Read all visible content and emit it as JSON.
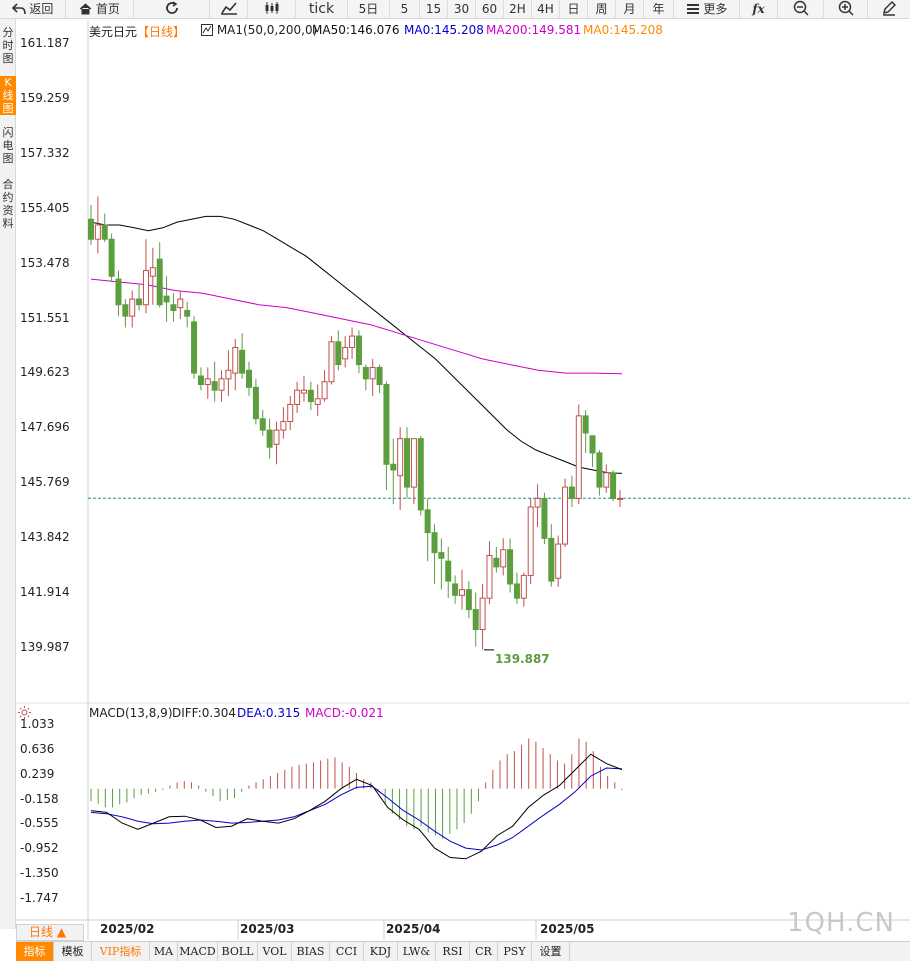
{
  "toolbar": {
    "back": "返回",
    "home": "首页",
    "tick": "tick",
    "five_day": "5日",
    "periods": [
      "5",
      "15",
      "30",
      "60",
      "2H",
      "4H",
      "日",
      "周",
      "月",
      "年"
    ],
    "more": "更多",
    "fx": "fx"
  },
  "sidetabs": [
    "分时图",
    "K线图",
    "闪电图",
    "合约资料"
  ],
  "header": {
    "symbol": "美元日元",
    "period": "【日线】",
    "ma_group": "MA1(50,0,200,0)",
    "ma50": "MA50:146.076",
    "ma0a": "MA0:145.208",
    "ma200": "MA200:149.581",
    "ma0b": "MA0:145.208"
  },
  "macd_header": {
    "name": "MACD(13,8,9)",
    "diff": "DIFF:0.304",
    "dea": "DEA:0.315",
    "macd": "MACD:-0.021"
  },
  "low_label": "139.887",
  "bottom": {
    "period_button": "日线 ▲",
    "tabs": [
      "指标",
      "模板",
      "VIP指标",
      "MA",
      "MACD",
      "BOLL",
      "VOL",
      "BIAS",
      "CCI",
      "KDJ",
      "LW&",
      "RSI",
      "CR",
      "PSY",
      "设置"
    ]
  },
  "watermark": "1QH.CN",
  "colors": {
    "up": "#c0504d",
    "down": "#5a9e3e",
    "ma50": "#000000",
    "ma200": "#cc00cc",
    "price_line": "#2b8a8a",
    "dea": "#0000cc",
    "accent": "#ff8a00"
  },
  "chart_data": [
    {
      "type": "candlestick",
      "y_ticks": [
        "161.187",
        "159.259",
        "157.332",
        "155.405",
        "153.478",
        "151.551",
        "149.623",
        "147.696",
        "145.769",
        "143.842",
        "141.914",
        "139.987"
      ],
      "ylim": [
        139.987,
        161.187
      ],
      "x_ticks": [
        "2025/02",
        "2025/03",
        "2025/04",
        "2025/05"
      ],
      "current_price": 145.208,
      "low_marker": 139.887,
      "candles": [
        [
          "155.0",
          "155.5",
          "154.1",
          "154.3"
        ],
        [
          "154.3",
          "155.8",
          "153.8",
          "154.8"
        ],
        [
          "154.8",
          "155.2",
          "154.2",
          "154.3"
        ],
        [
          "154.3",
          "154.5",
          "152.8",
          "153.0"
        ],
        [
          "152.9",
          "153.2",
          "151.6",
          "152.0"
        ],
        [
          "152.0",
          "152.2",
          "151.2",
          "151.6"
        ],
        [
          "151.6",
          "152.5",
          "151.2",
          "152.2"
        ],
        [
          "152.2",
          "152.7",
          "151.8",
          "152.0"
        ],
        [
          "152.0",
          "154.3",
          "151.7",
          "153.2"
        ],
        [
          "153.0",
          "154.0",
          "152.0",
          "153.3"
        ],
        [
          "153.6",
          "154.2",
          "151.9",
          "152.0"
        ],
        [
          "152.3",
          "153.0",
          "151.4",
          "152.1"
        ],
        [
          "152.0",
          "152.4",
          "151.4",
          "151.8"
        ],
        [
          "151.9",
          "152.5",
          "151.5",
          "152.2"
        ],
        [
          "151.8",
          "152.1",
          "151.2",
          "151.6"
        ],
        [
          "151.4",
          "151.6",
          "149.4",
          "149.6"
        ],
        [
          "149.5",
          "149.8",
          "149.0",
          "149.2"
        ],
        [
          "149.2",
          "149.8",
          "148.7",
          "149.4"
        ],
        [
          "149.3",
          "150.0",
          "148.6",
          "149.0"
        ],
        [
          "149.0",
          "149.7",
          "148.6",
          "149.4"
        ],
        [
          "149.4",
          "150.4",
          "148.8",
          "149.7"
        ],
        [
          "149.6",
          "150.8",
          "149.0",
          "150.5"
        ],
        [
          "150.4",
          "151.0",
          "149.4",
          "149.6"
        ],
        [
          "149.7",
          "150.0",
          "148.8",
          "149.1"
        ],
        [
          "149.1",
          "149.4",
          "147.8",
          "148.0"
        ],
        [
          "148.0",
          "148.3",
          "147.4",
          "147.6"
        ],
        [
          "147.6",
          "148.0",
          "146.6",
          "147.0"
        ],
        [
          "147.1",
          "147.9",
          "146.4",
          "147.6"
        ],
        [
          "147.6",
          "148.4",
          "147.3",
          "147.9"
        ],
        [
          "147.9",
          "148.8",
          "147.6",
          "148.5"
        ],
        [
          "148.5",
          "149.3",
          "148.2",
          "149.0"
        ],
        [
          "148.9",
          "149.5",
          "148.6",
          "149.0"
        ],
        [
          "149.0",
          "149.3",
          "148.3",
          "148.6"
        ],
        [
          "148.5",
          "149.2",
          "148.1",
          "148.7"
        ],
        [
          "148.7",
          "149.7",
          "148.6",
          "149.3"
        ],
        [
          "149.3",
          "150.9",
          "149.2",
          "150.7"
        ],
        [
          "150.7",
          "151.1",
          "149.7",
          "149.9"
        ],
        [
          "150.1",
          "150.9",
          "149.8",
          "150.5"
        ],
        [
          "150.5",
          "151.2",
          "150.1",
          "150.9"
        ],
        [
          "150.9",
          "151.1",
          "149.6",
          "149.9"
        ],
        [
          "149.8",
          "149.9",
          "149.0",
          "149.4"
        ],
        [
          "149.4",
          "150.1",
          "148.8",
          "149.8"
        ],
        [
          "149.8",
          "149.9",
          "148.9",
          "149.2"
        ],
        [
          "149.2",
          "149.3",
          "145.5",
          "146.4"
        ],
        [
          "146.4",
          "147.3",
          "145.0",
          "146.2"
        ],
        [
          "146.0",
          "147.7",
          "144.8",
          "147.3"
        ],
        [
          "147.3",
          "147.7",
          "145.2",
          "145.6"
        ],
        [
          "145.6",
          "147.3",
          "145.0",
          "147.3"
        ],
        [
          "147.3",
          "147.4",
          "144.6",
          "144.8"
        ],
        [
          "144.8",
          "145.2",
          "143.0",
          "144.0"
        ],
        [
          "144.0",
          "144.3",
          "142.2",
          "143.3"
        ],
        [
          "143.3",
          "143.8",
          "142.0",
          "143.1"
        ],
        [
          "143.0",
          "143.5",
          "141.7",
          "142.3"
        ],
        [
          "142.2",
          "142.5",
          "141.5",
          "141.8"
        ],
        [
          "141.8",
          "142.7",
          "141.3",
          "142.0"
        ],
        [
          "142.0",
          "142.3",
          "141.0",
          "141.3"
        ],
        [
          "141.3",
          "141.9",
          "140.0",
          "140.6"
        ],
        [
          "140.6",
          "142.2",
          "139.9",
          "141.7"
        ],
        [
          "141.7",
          "143.7",
          "141.5",
          "143.2"
        ],
        [
          "143.1",
          "143.5",
          "142.6",
          "142.8"
        ],
        [
          "142.8",
          "143.8",
          "142.5",
          "143.4"
        ],
        [
          "143.4",
          "143.8",
          "141.9",
          "142.2"
        ],
        [
          "142.2",
          "142.6",
          "141.5",
          "141.7"
        ],
        [
          "141.7",
          "142.6",
          "141.4",
          "142.5"
        ],
        [
          "142.5",
          "145.2",
          "142.2",
          "144.9"
        ],
        [
          "144.9",
          "145.7",
          "144.2",
          "145.2"
        ],
        [
          "145.2",
          "145.4",
          "143.6",
          "143.8"
        ],
        [
          "143.8",
          "144.3",
          "142.1",
          "142.3"
        ],
        [
          "142.4",
          "143.9",
          "142.1",
          "143.6"
        ],
        [
          "143.6",
          "145.9",
          "143.5",
          "145.6"
        ],
        [
          "145.6",
          "146.0",
          "144.9",
          "145.2"
        ],
        [
          "145.2",
          "148.5",
          "145.0",
          "148.1"
        ],
        [
          "148.1",
          "148.3",
          "146.8",
          "147.5"
        ],
        [
          "147.4",
          "147.4",
          "146.3",
          "146.8"
        ],
        [
          "146.8",
          "146.9",
          "145.3",
          "145.6"
        ],
        [
          "145.6",
          "146.4",
          "145.4",
          "146.1"
        ],
        [
          "146.1",
          "146.2",
          "145.1",
          "145.2"
        ],
        [
          "145.2",
          "145.5",
          "144.9",
          "145.2"
        ]
      ],
      "ma50": [
        154.9,
        154.8,
        154.8,
        154.7,
        154.6,
        154.7,
        154.9,
        155.0,
        155.1,
        155.1,
        155.0,
        154.8,
        154.6,
        154.3,
        154.0,
        153.7,
        153.3,
        152.9,
        152.5,
        152.1,
        151.7,
        151.3,
        150.9,
        150.5,
        150.1,
        149.6,
        149.1,
        148.6,
        148.1,
        147.6,
        147.2,
        146.9,
        146.7,
        146.5,
        146.3,
        146.2,
        146.1,
        146.08
      ],
      "ma200": [
        152.9,
        152.8,
        152.7,
        152.5,
        152.4,
        152.2,
        152.0,
        151.9,
        151.7,
        151.5,
        151.3,
        151.0,
        150.7,
        150.4,
        150.1,
        149.9,
        149.7,
        149.6,
        149.6,
        149.58
      ]
    },
    {
      "type": "macd",
      "title": "MACD(13,8,9)",
      "y_ticks": [
        "1.033",
        "0.636",
        "0.239",
        "-0.158",
        "-0.555",
        "-0.952",
        "-1.350",
        "-1.747"
      ],
      "ylim": [
        -1.747,
        1.033
      ],
      "diff": [
        -0.35,
        -0.38,
        -0.55,
        -0.65,
        -0.55,
        -0.45,
        -0.44,
        -0.5,
        -0.62,
        -0.6,
        -0.48,
        -0.52,
        -0.55,
        -0.48,
        -0.35,
        -0.2,
        0.0,
        0.15,
        0.05,
        -0.3,
        -0.5,
        -0.65,
        -0.95,
        -1.1,
        -1.12,
        -1.0,
        -0.75,
        -0.6,
        -0.3,
        -0.1,
        0.05,
        0.3,
        0.55,
        0.4,
        0.304
      ],
      "dea": [
        -0.38,
        -0.4,
        -0.45,
        -0.52,
        -0.56,
        -0.55,
        -0.52,
        -0.5,
        -0.52,
        -0.55,
        -0.54,
        -0.52,
        -0.5,
        -0.45,
        -0.35,
        -0.25,
        -0.1,
        0.02,
        0.04,
        -0.15,
        -0.35,
        -0.5,
        -0.68,
        -0.84,
        -0.95,
        -0.98,
        -0.9,
        -0.78,
        -0.6,
        -0.42,
        -0.25,
        -0.05,
        0.2,
        0.33,
        0.315
      ],
      "hist": [
        -0.2,
        -0.24,
        -0.3,
        -0.3,
        -0.25,
        -0.22,
        -0.15,
        -0.1,
        -0.08,
        -0.05,
        -0.02,
        0.05,
        0.1,
        0.12,
        0.1,
        0.05,
        -0.05,
        -0.12,
        -0.2,
        -0.18,
        -0.15,
        -0.05,
        0.05,
        0.1,
        0.15,
        0.2,
        0.25,
        0.3,
        0.35,
        0.38,
        0.4,
        0.42,
        0.45,
        0.48,
        0.5,
        0.42,
        0.35,
        0.25,
        0.15,
        0.1,
        -0.05,
        -0.25,
        -0.4,
        -0.5,
        -0.6,
        -0.65,
        -0.6,
        -0.7,
        -0.75,
        -0.8,
        -0.72,
        -0.65,
        -0.55,
        -0.4,
        -0.2,
        0.1,
        0.3,
        0.45,
        0.55,
        0.6,
        0.7,
        0.8,
        0.75,
        0.65,
        0.55,
        0.45,
        0.4,
        0.55,
        0.8,
        0.75,
        0.6,
        0.35,
        0.2,
        0.1,
        -0.021
      ]
    }
  ]
}
